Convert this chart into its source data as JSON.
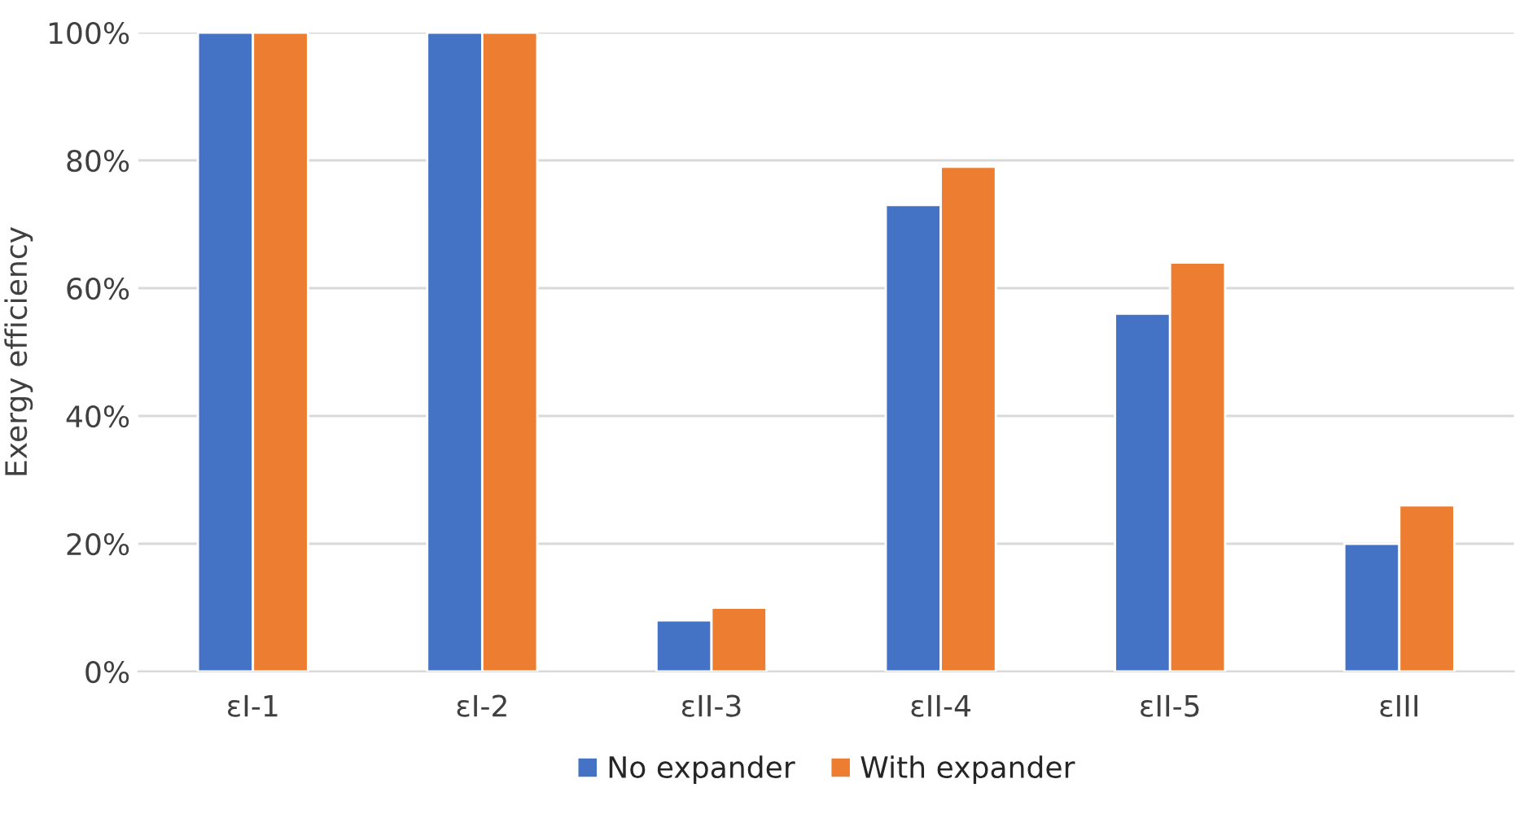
{
  "chart_data": {
    "type": "bar",
    "ylabel": "Exergy efficiency",
    "categories": [
      "εI-1",
      "εI-2",
      "εII-3",
      "εII-4",
      "εII-5",
      "εIII"
    ],
    "series": [
      {
        "name": "No expander",
        "color": "#4472c4",
        "values": [
          100,
          100,
          8,
          73,
          56,
          20
        ]
      },
      {
        "name": "With expander",
        "color": "#ed7d31",
        "values": [
          100,
          100,
          10,
          79,
          64,
          26
        ]
      }
    ],
    "ylim": [
      0,
      100
    ],
    "yticks": [
      {
        "value": 0,
        "label": "0%"
      },
      {
        "value": 20,
        "label": "20%"
      },
      {
        "value": 40,
        "label": "40%"
      },
      {
        "value": 60,
        "label": "60%"
      },
      {
        "value": 80,
        "label": "80%"
      },
      {
        "value": 100,
        "label": "100%"
      }
    ],
    "grid": "y",
    "legend": "bottom"
  }
}
